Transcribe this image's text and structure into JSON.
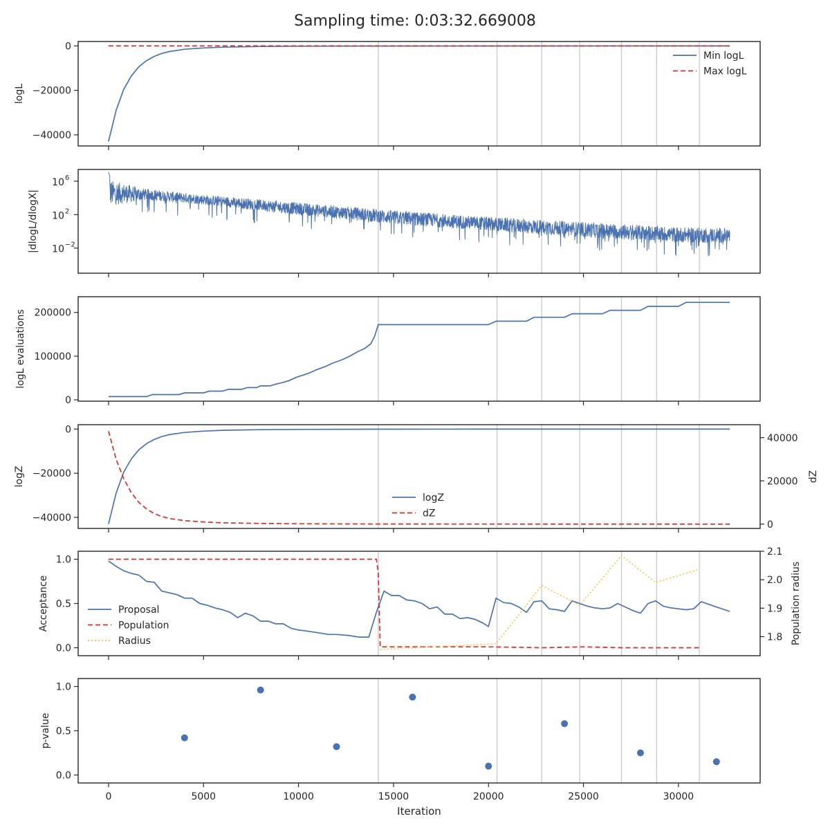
{
  "title": "Sampling time: 0:03:32.669008",
  "x_axis": {
    "label": "Iteration",
    "range": [
      -1600,
      34300
    ],
    "ticks": [
      0,
      5000,
      10000,
      15000,
      20000,
      25000,
      30000
    ],
    "tick_labels": [
      "0",
      "5000",
      "10000",
      "15000",
      "20000",
      "25000",
      "30000"
    ]
  },
  "vlines": [
    14200,
    20450,
    22800,
    24800,
    27000,
    28850,
    31100
  ],
  "colors": {
    "blue": "#4a72b0",
    "red": "#d62f27",
    "gold": "#f5c22f",
    "grid": "#c8c8c8",
    "axis": "#262626"
  },
  "chart_data": [
    {
      "id": "loglike",
      "type": "line",
      "ylabel": "logL",
      "ylim": [
        -45000,
        2000
      ],
      "yticks": [
        0,
        -20000,
        -40000
      ],
      "ytick_labels": [
        "0",
        "−20000",
        "−40000"
      ],
      "legend_position": "top-right",
      "series": [
        {
          "name": "Min logL",
          "style": "solid",
          "color": "blue",
          "x": [
            0,
            400,
            800,
            1200,
            1600,
            2000,
            2400,
            2800,
            3200,
            4000,
            5000,
            6000,
            8000,
            10000,
            14000,
            20000,
            32700
          ],
          "y": [
            -43000,
            -29000,
            -19500,
            -13500,
            -9300,
            -6600,
            -4700,
            -3400,
            -2500,
            -1500,
            -900,
            -550,
            -250,
            -120,
            -40,
            -10,
            0
          ]
        },
        {
          "name": "Max logL",
          "style": "dashed",
          "color": "red",
          "x": [
            0,
            32700
          ],
          "y": [
            0,
            0
          ]
        }
      ]
    },
    {
      "id": "dlogl",
      "type": "line",
      "ylabel": "|dlogL/dlogX|",
      "yscale": "log",
      "ylim_log10": [
        -5,
        7.4
      ],
      "yticks_log10": [
        6,
        2,
        -2
      ],
      "ytick_labels": [
        "10",
        "10",
        "10"
      ],
      "ytick_exponents": [
        "6",
        "2",
        "−2"
      ],
      "series": [
        {
          "name": "",
          "style": "noisy",
          "color": "blue",
          "x": [
            0,
            2000,
            5000,
            10000,
            15000,
            20000,
            25000,
            30000,
            32700
          ],
          "y_log10_center": [
            4.6,
            4.4,
            3.8,
            2.7,
            1.7,
            0.9,
            0.2,
            -0.4,
            -0.5
          ],
          "y_log10_high": [
            6.5,
            5.2,
            4.5,
            3.6,
            2.7,
            1.9,
            1.3,
            0.7,
            0.6
          ],
          "y_log10_low": [
            3.2,
            2.2,
            1.5,
            0.4,
            -0.6,
            -1.5,
            -2.2,
            -2.9,
            -3.2
          ]
        }
      ]
    },
    {
      "id": "neval",
      "type": "line",
      "ylabel": "logL evaluations",
      "ylim": [
        -3000,
        236000
      ],
      "yticks": [
        0,
        100000,
        200000
      ],
      "ytick_labels": [
        "0",
        "100000",
        "200000"
      ],
      "series": [
        {
          "name": "",
          "style": "solid",
          "color": "blue",
          "x": [
            0,
            2000,
            2300,
            3700,
            4000,
            5000,
            5300,
            6000,
            6300,
            7000,
            7300,
            7800,
            8000,
            8500,
            8800,
            9200,
            9500,
            9900,
            10200,
            10600,
            10900,
            11400,
            11800,
            12300,
            12700,
            13100,
            13500,
            13800,
            14000,
            14200,
            20000,
            20400,
            22000,
            22400,
            24000,
            24400,
            26000,
            26400,
            28000,
            28400,
            30000,
            30400,
            32700
          ],
          "y": [
            7500,
            7500,
            12000,
            12000,
            16000,
            16000,
            20000,
            20000,
            24000,
            24000,
            28000,
            28000,
            32000,
            32000,
            36000,
            40000,
            44000,
            52000,
            56000,
            62000,
            68000,
            76000,
            84000,
            92000,
            100000,
            110000,
            118000,
            128000,
            145000,
            172000,
            172000,
            180000,
            180000,
            189000,
            189000,
            197000,
            197000,
            205000,
            205000,
            214000,
            214000,
            223000,
            223000
          ]
        }
      ]
    },
    {
      "id": "logz",
      "type": "line",
      "ylabel": "logZ",
      "ylabel_right": "dZ",
      "ylim": [
        -45000,
        2000
      ],
      "yticks": [
        0,
        -20000,
        -40000
      ],
      "ytick_labels": [
        "0",
        "−20000",
        "−40000"
      ],
      "ylim_right": [
        -2000,
        46000
      ],
      "yticks_right": [
        0,
        20000,
        40000
      ],
      "ytick_labels_right": [
        "0",
        "20000",
        "40000"
      ],
      "legend_position": "lower-center",
      "series": [
        {
          "name": "logZ",
          "style": "solid",
          "color": "blue",
          "axis": "left",
          "x": [
            0,
            400,
            800,
            1200,
            1600,
            2000,
            2400,
            2800,
            3200,
            4000,
            5000,
            6000,
            8000,
            10000,
            14000,
            20000,
            32700
          ],
          "y": [
            -43000,
            -29000,
            -19500,
            -13500,
            -9300,
            -6600,
            -4700,
            -3400,
            -2500,
            -1500,
            -900,
            -550,
            -250,
            -120,
            -40,
            -10,
            0
          ]
        },
        {
          "name": "dZ",
          "style": "dashed",
          "color": "red",
          "axis": "right",
          "x": [
            0,
            400,
            800,
            1200,
            1600,
            2000,
            2400,
            2800,
            3200,
            4000,
            5000,
            6000,
            8000,
            10000,
            14000,
            20000,
            32700
          ],
          "y": [
            43000,
            30000,
            21000,
            14500,
            10000,
            7000,
            4900,
            3500,
            2600,
            1600,
            1000,
            600,
            300,
            150,
            50,
            15,
            0
          ]
        }
      ]
    },
    {
      "id": "acceptance",
      "type": "line",
      "ylabel": "Acceptance",
      "ylabel_right": "Population radius",
      "ylim": [
        -0.09,
        1.09
      ],
      "yticks": [
        0,
        0.5,
        1
      ],
      "ytick_labels": [
        "0.0",
        "0.5",
        "1.0"
      ],
      "ylim_right": [
        1.733,
        2.1
      ],
      "yticks_right": [
        1.8,
        1.9,
        2.0,
        2.1
      ],
      "ytick_labels_right": [
        "1.8",
        "1.9",
        "2.0",
        "2.1"
      ],
      "legend_position": "center-left",
      "series": [
        {
          "name": "Proposal",
          "style": "solid",
          "color": "blue",
          "axis": "left",
          "x": [
            0,
            400,
            800,
            1200,
            1600,
            2000,
            2400,
            2800,
            3200,
            3600,
            4000,
            4400,
            4800,
            5200,
            5600,
            6000,
            6400,
            6800,
            7200,
            7600,
            8000,
            8400,
            8800,
            9200,
            9600,
            10000,
            10400,
            11000,
            11600,
            12000,
            12600,
            13200,
            13700,
            14100,
            14500,
            14900,
            15300,
            15700,
            16100,
            16500,
            16900,
            17300,
            17700,
            18100,
            18500,
            18900,
            19300,
            19700,
            20000,
            20400,
            20800,
            21200,
            21600,
            22000,
            22400,
            22800,
            23200,
            23600,
            24000,
            24400,
            24800,
            25200,
            25600,
            26000,
            26400,
            26800,
            27200,
            27600,
            28000,
            28400,
            28800,
            29200,
            29600,
            30000,
            30400,
            30800,
            31200,
            31600,
            32000,
            32700
          ],
          "y": [
            0.98,
            0.92,
            0.87,
            0.84,
            0.82,
            0.75,
            0.74,
            0.64,
            0.62,
            0.6,
            0.56,
            0.56,
            0.5,
            0.48,
            0.45,
            0.43,
            0.4,
            0.34,
            0.39,
            0.36,
            0.3,
            0.3,
            0.27,
            0.27,
            0.22,
            0.2,
            0.19,
            0.17,
            0.15,
            0.15,
            0.14,
            0.12,
            0.12,
            0.4,
            0.64,
            0.59,
            0.59,
            0.54,
            0.53,
            0.5,
            0.44,
            0.46,
            0.38,
            0.38,
            0.33,
            0.34,
            0.32,
            0.28,
            0.24,
            0.56,
            0.51,
            0.5,
            0.46,
            0.4,
            0.52,
            0.53,
            0.44,
            0.43,
            0.41,
            0.53,
            0.5,
            0.47,
            0.45,
            0.44,
            0.45,
            0.5,
            0.46,
            0.42,
            0.39,
            0.5,
            0.53,
            0.47,
            0.45,
            0.44,
            0.43,
            0.44,
            0.52,
            0.49,
            0.46,
            0.41
          ]
        },
        {
          "name": "Population",
          "style": "dashed",
          "color": "red",
          "axis": "left",
          "x": [
            0,
            14100,
            14200,
            14300,
            20000,
            22800,
            25000,
            27000,
            29000,
            31100
          ],
          "y": [
            1.0,
            1.0,
            0.85,
            0.01,
            0.01,
            0.0,
            0.01,
            0.0,
            0.0,
            0.0
          ]
        },
        {
          "name": "Radius",
          "style": "dotted",
          "color": "gold",
          "axis": "right",
          "x": [
            14300,
            20400,
            22800,
            24800,
            27000,
            28800,
            31000
          ],
          "y": [
            1.755,
            1.775,
            1.98,
            1.91,
            2.085,
            1.99,
            2.035
          ]
        }
      ]
    },
    {
      "id": "pvalue",
      "type": "scatter",
      "ylabel": "p-value",
      "ylim": [
        -0.09,
        1.09
      ],
      "yticks": [
        0,
        0.5,
        1
      ],
      "ytick_labels": [
        "0.0",
        "0.5",
        "1.0"
      ],
      "series": [
        {
          "name": "",
          "color": "blue",
          "x": [
            4000,
            8000,
            12000,
            16000,
            20000,
            24000,
            28000,
            32000
          ],
          "y": [
            0.42,
            0.96,
            0.32,
            0.88,
            0.1,
            0.58,
            0.25,
            0.15
          ]
        }
      ]
    }
  ]
}
